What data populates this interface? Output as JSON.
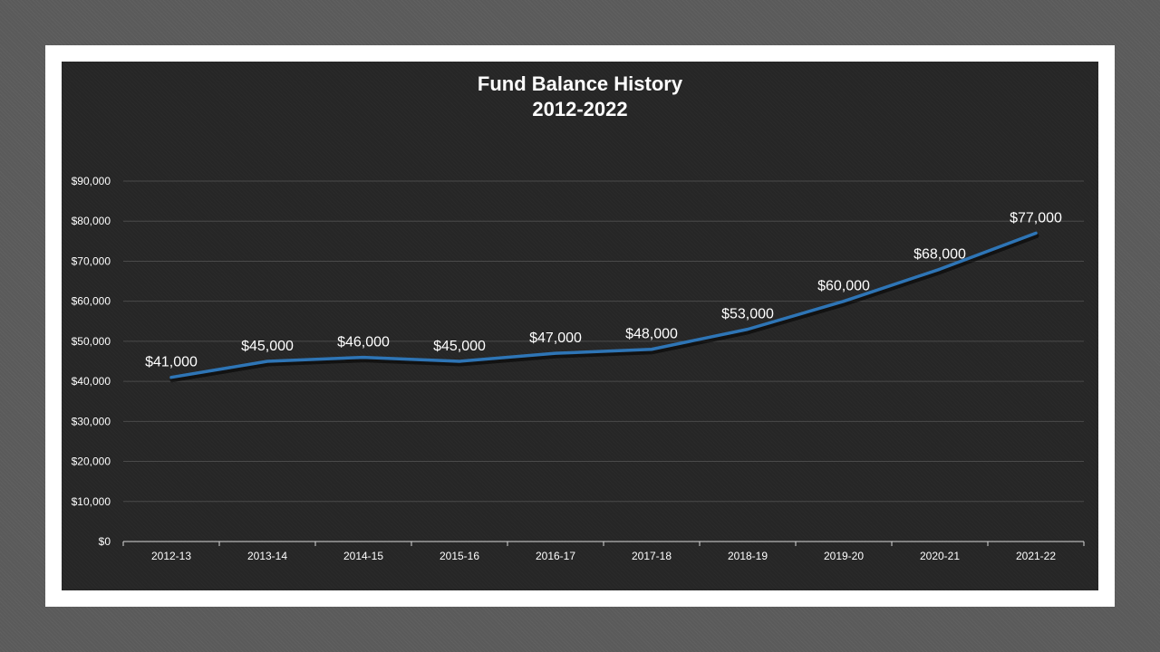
{
  "chart_data": {
    "type": "line",
    "title": "Fund Balance History",
    "subtitle": "2012-2022",
    "xlabel": "",
    "ylabel": "",
    "categories": [
      "2012-13",
      "2013-14",
      "2014-15",
      "2015-16",
      "2016-17",
      "2017-18",
      "2018-19",
      "2019-20",
      "2020-21",
      "2021-22"
    ],
    "values": [
      41000,
      45000,
      46000,
      45000,
      47000,
      48000,
      53000,
      60000,
      68000,
      77000
    ],
    "data_labels": [
      "$41,000",
      "$45,000",
      "$46,000",
      "$45,000",
      "$47,000",
      "$48,000",
      "$53,000",
      "$60,000",
      "$68,000",
      "$77,000"
    ],
    "ylim": [
      0,
      90000
    ],
    "y_ticks": [
      0,
      10000,
      20000,
      30000,
      40000,
      50000,
      60000,
      70000,
      80000,
      90000
    ],
    "y_tick_labels": [
      "$0",
      "$10,000",
      "$20,000",
      "$30,000",
      "$40,000",
      "$50,000",
      "$60,000",
      "$70,000",
      "$80,000",
      "$90,000"
    ],
    "grid": true,
    "legend": "none",
    "line_color": "#2e75b6",
    "background_color": "#262626"
  }
}
